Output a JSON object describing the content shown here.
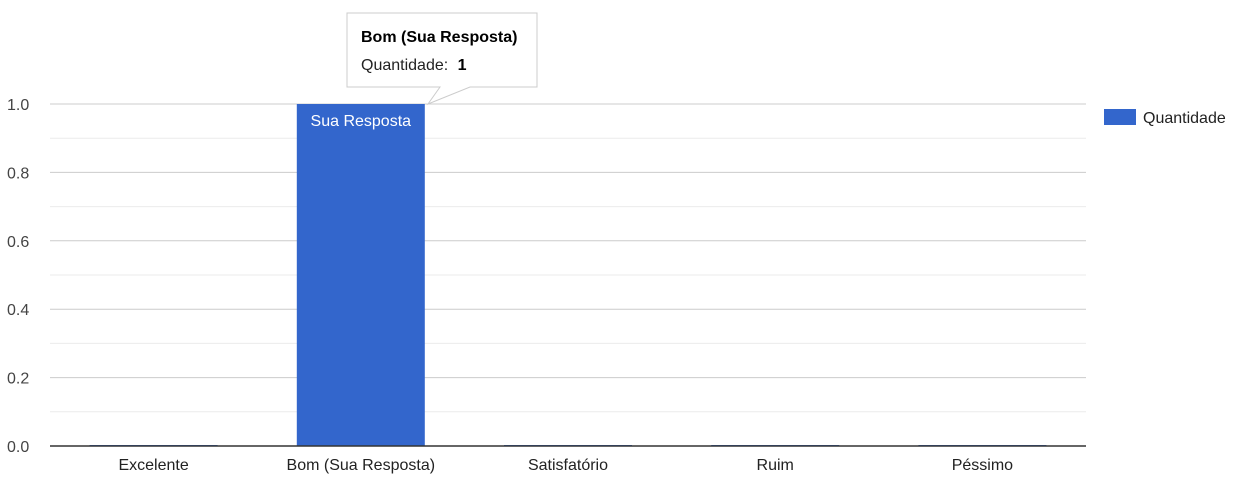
{
  "chart_data": {
    "type": "bar",
    "categories": [
      "Excelente",
      "Bom (Sua Resposta)",
      "Satisfatório",
      "Ruim",
      "Péssimo"
    ],
    "series": [
      {
        "name": "Quantidade",
        "values": [
          0,
          1,
          0,
          0,
          0
        ],
        "color": "#3366cc"
      }
    ],
    "ylim": [
      0,
      1
    ],
    "yticks": [
      "0.0",
      "0.2",
      "0.4",
      "0.6",
      "0.8",
      "1.0"
    ],
    "grid": true,
    "legend_position": "right",
    "bar_annotations": [
      {
        "category_index": 1,
        "text": "Sua Resposta"
      }
    ],
    "tooltip": {
      "category_index": 1,
      "title": "Bom (Sua Resposta)",
      "label": "Quantidade:",
      "value": "1"
    }
  }
}
